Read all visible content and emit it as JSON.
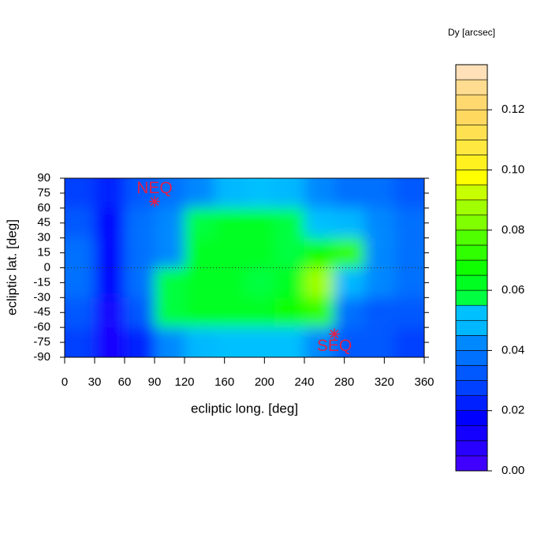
{
  "chart_data": {
    "type": "heatmap",
    "xlabel": "ecliptic long. [deg]",
    "ylabel": "ecliptic lat. [deg]",
    "colorbar_title": "Dy [arcsec]",
    "xlim": [
      0,
      360
    ],
    "ylim": [
      -90,
      90
    ],
    "xticks": [
      0,
      30,
      60,
      90,
      120,
      160,
      200,
      240,
      280,
      320,
      360
    ],
    "yticks": [
      -90,
      -75,
      -60,
      -45,
      -30,
      -15,
      0,
      15,
      30,
      45,
      60,
      75,
      90
    ],
    "x": [
      15,
      45,
      75,
      105,
      135,
      165,
      195,
      225,
      255,
      285,
      315,
      345
    ],
    "y": [
      75,
      45,
      15,
      -15,
      -45,
      -75
    ],
    "z": [
      [
        0.025,
        0.02,
        0.03,
        0.035,
        0.04,
        0.045,
        0.05,
        0.045,
        0.04,
        0.035,
        0.035,
        0.03
      ],
      [
        0.03,
        0.015,
        0.035,
        0.04,
        0.055,
        0.06,
        0.06,
        0.055,
        0.05,
        0.045,
        0.04,
        0.035
      ],
      [
        0.035,
        0.015,
        0.035,
        0.04,
        0.06,
        0.06,
        0.06,
        0.055,
        0.065,
        0.07,
        0.04,
        0.035
      ],
      [
        0.035,
        0.015,
        0.035,
        0.055,
        0.06,
        0.06,
        0.055,
        0.06,
        0.085,
        0.045,
        0.04,
        0.035
      ],
      [
        0.03,
        0.01,
        0.03,
        0.055,
        0.06,
        0.06,
        0.06,
        0.065,
        0.07,
        0.035,
        0.03,
        0.03
      ],
      [
        0.025,
        0.01,
        0.02,
        0.04,
        0.045,
        0.05,
        0.05,
        0.05,
        0.04,
        0.03,
        0.03,
        0.025
      ]
    ],
    "zlim": [
      0,
      0.135
    ],
    "zticks": [
      {
        "value": 0,
        "label": "0.00"
      },
      {
        "value": 0.02,
        "label": "0.02"
      },
      {
        "value": 0.04,
        "label": "0.04"
      },
      {
        "value": 0.06,
        "label": "0.06"
      },
      {
        "value": 0.08,
        "label": "0.08"
      },
      {
        "value": 0.1,
        "label": "0.10"
      },
      {
        "value": 0.12,
        "label": "0.12"
      }
    ],
    "colors": [
      "#4000ff",
      "#2800ff",
      "#1400ff",
      "#0000ff",
      "#0020ff",
      "#0040ff",
      "#0058ff",
      "#0070ff",
      "#0088ff",
      "#00b8ff",
      "#00c0ff",
      "#00ff40",
      "#00ff20",
      "#10ff00",
      "#30ff00",
      "#50ff00",
      "#80ff00",
      "#a0ff00",
      "#c8ff00",
      "#ffff00",
      "#fff020",
      "#ffe840",
      "#ffe050",
      "#ffd860",
      "#ffd870",
      "#ffdc90",
      "#ffe0b8"
    ],
    "zero_line": 0,
    "annotations": [
      {
        "text": "NEQ",
        "x": 90,
        "y": 66.6,
        "color": "#e0204a"
      },
      {
        "text": "SEQ",
        "x": 270,
        "y": -66.6,
        "color": "#e0204a"
      }
    ]
  }
}
